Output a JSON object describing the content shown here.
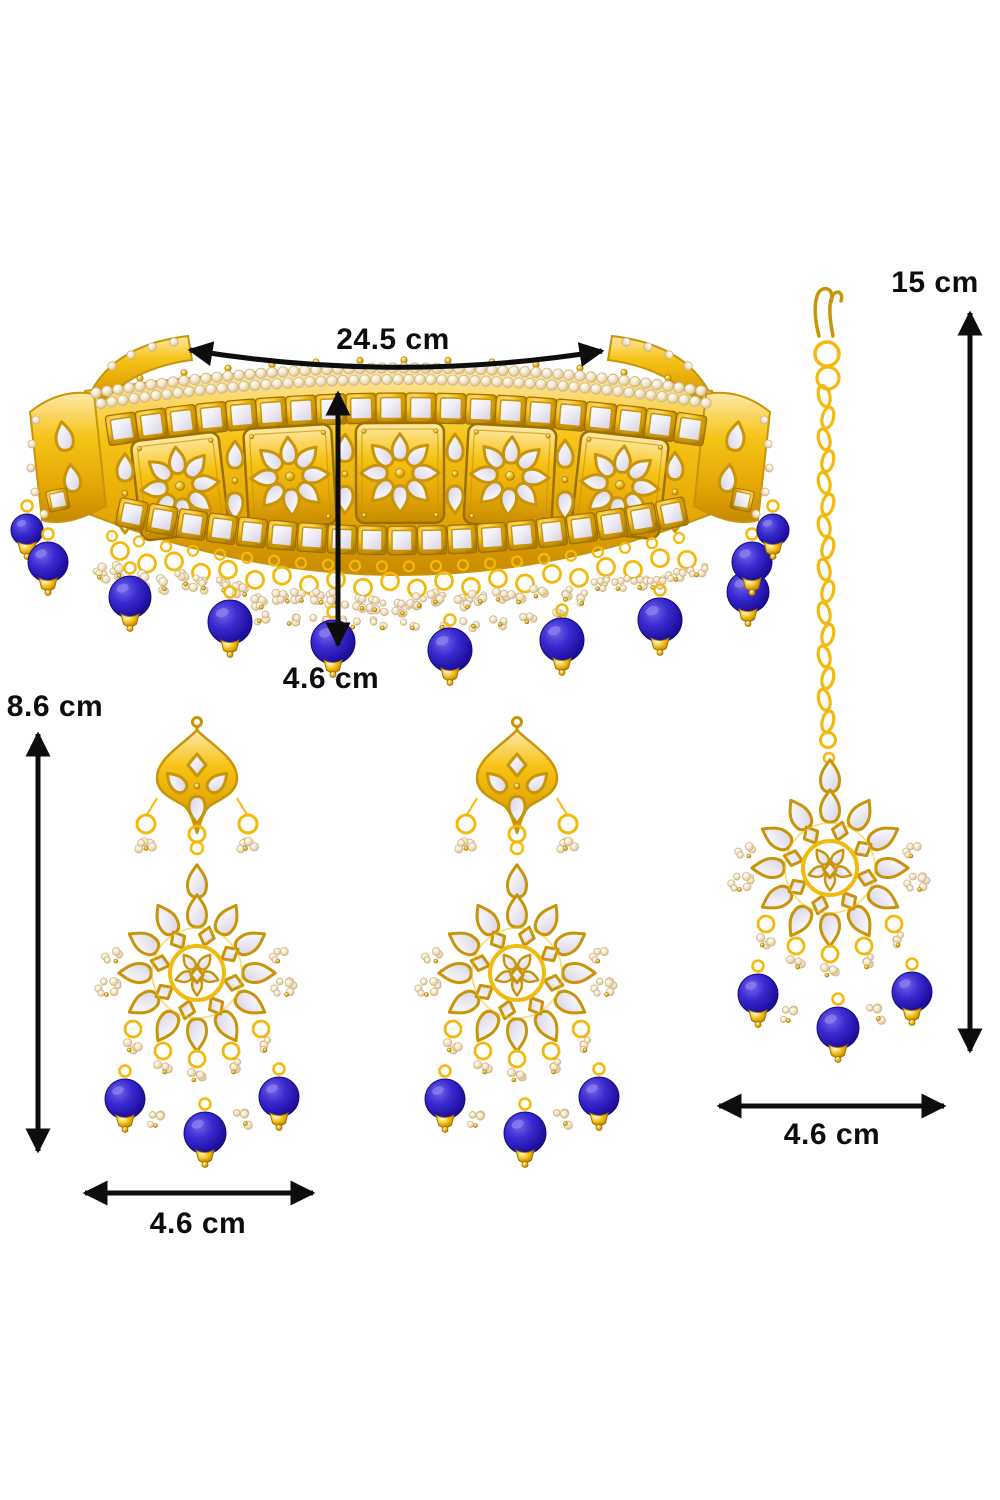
{
  "image": {
    "kind": "product-dimension-graphic",
    "background": "#ffffff",
    "subject": "gold kundan jewellery set with blue beads and pearls"
  },
  "products": {
    "necklace": {
      "name": "kundan choker necklace"
    },
    "earring_left": {
      "name": "kundan chandbali earring"
    },
    "earring_right": {
      "name": "kundan chandbali earring"
    },
    "maang_tikka": {
      "name": "maang tikka with chain"
    }
  },
  "annotations": {
    "necklace_width": "24.5 cm",
    "necklace_drop": "4.6 cm",
    "tikka_length": "15 cm",
    "earring_length": "8.6 cm",
    "earring_width": "4.6 cm",
    "tikka_width": "4.6 cm"
  },
  "colors": {
    "background": "#ffffff",
    "annotation": "#0d0d0d",
    "gold_light": "#ffe9a8",
    "gold": "#f3b90c",
    "gold_dark": "#c8940a",
    "gold_deep": "#9c7000",
    "stone": "#e9e6f2",
    "pearl": "#f2e5c6",
    "pearl_edge": "#cdb386",
    "bead_blue": "#2d1db8",
    "bead_blue_dark": "#150b7e"
  }
}
